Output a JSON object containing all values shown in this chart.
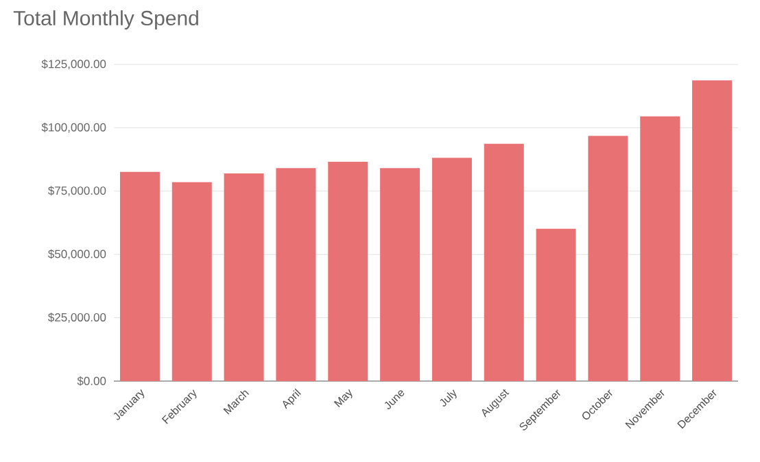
{
  "chart_data": {
    "type": "bar",
    "title": "Total Monthly Spend",
    "categories": [
      "January",
      "February",
      "March",
      "April",
      "May",
      "June",
      "July",
      "August",
      "September",
      "October",
      "November",
      "December"
    ],
    "values": [
      82600,
      78500,
      82000,
      84100,
      86600,
      84100,
      88100,
      93700,
      60100,
      96800,
      104500,
      118700
    ],
    "color": "#e87174",
    "ylim": [
      0,
      125000
    ],
    "yticks": [
      {
        "value": 0,
        "label": "$0.00"
      },
      {
        "value": 25000,
        "label": "$25,000.00"
      },
      {
        "value": 50000,
        "label": "$50,000.00"
      },
      {
        "value": 75000,
        "label": "$75,000.00"
      },
      {
        "value": 100000,
        "label": "$100,000.00"
      },
      {
        "value": 125000,
        "label": "$125,000.00"
      }
    ],
    "grid": "y"
  }
}
